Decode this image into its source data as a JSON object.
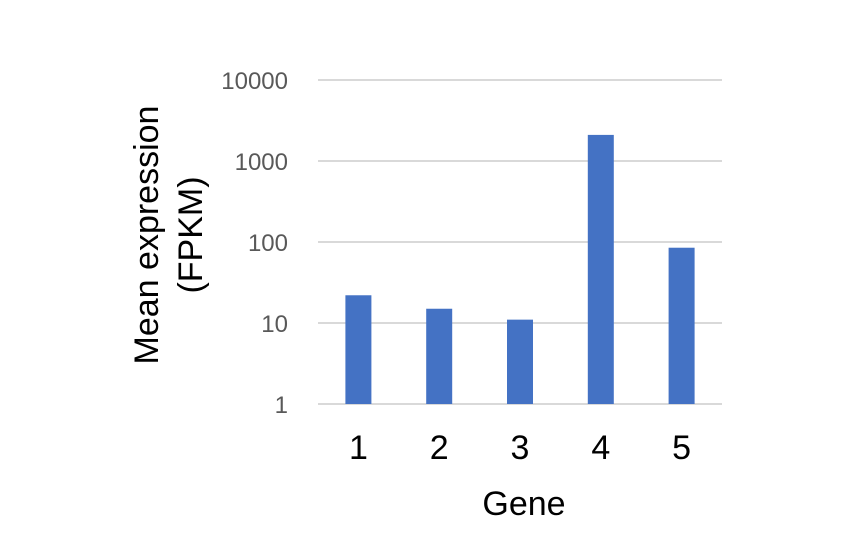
{
  "chart_data": {
    "type": "bar",
    "scale": "log",
    "categories": [
      "1",
      "2",
      "3",
      "4",
      "5"
    ],
    "values": [
      22,
      15,
      11,
      2100,
      85
    ],
    "xlabel": "Gene",
    "ylabel_lines": [
      "Mean expression",
      "(FPKM)"
    ],
    "ylim": [
      1,
      10000
    ],
    "yticks": [
      1,
      10,
      100,
      1000,
      10000
    ],
    "ytick_labels": [
      "1",
      "10",
      "100",
      "1000",
      "10000"
    ],
    "grid": true,
    "colors": {
      "bar": "#4472C4",
      "grid": "#D9D9D9"
    }
  }
}
